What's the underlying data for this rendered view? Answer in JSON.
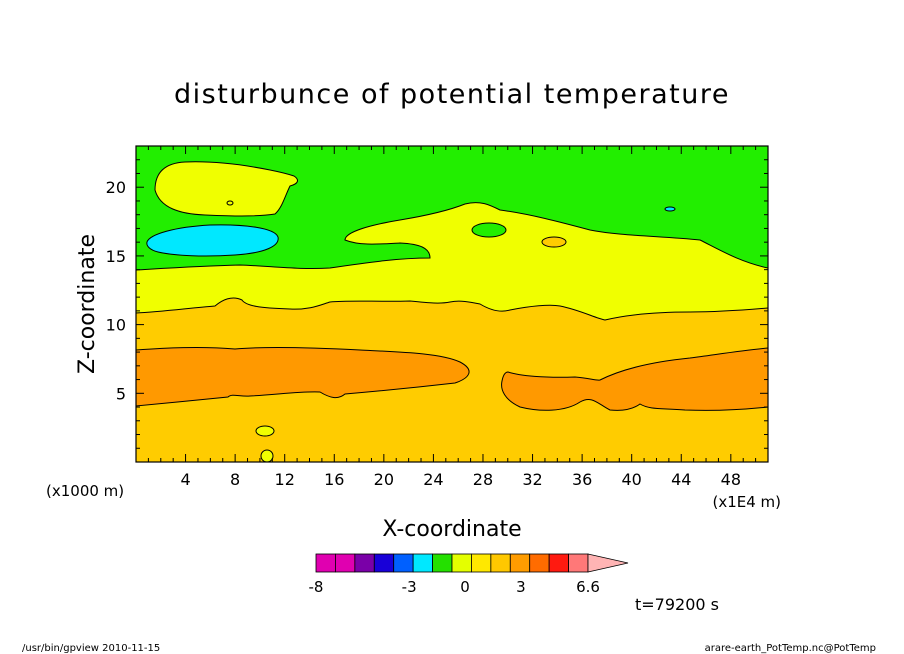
{
  "chart_data": {
    "type": "heatmap",
    "title": "disturbunce of potential temperature",
    "xlabel": "X-coordinate",
    "ylabel": "Z-coordinate",
    "x_unit": "(x1E4 m)",
    "y_unit": "(x1000 m)",
    "xlim": [
      0,
      51
    ],
    "ylim": [
      0,
      23
    ],
    "x_ticks": [
      "4",
      "8",
      "12",
      "16",
      "20",
      "24",
      "28",
      "32",
      "36",
      "40",
      "44",
      "48"
    ],
    "x_tick_values": [
      4,
      8,
      12,
      16,
      20,
      24,
      28,
      32,
      36,
      40,
      44,
      48
    ],
    "y_ticks": [
      "5",
      "10",
      "15",
      "20"
    ],
    "y_tick_values": [
      5,
      10,
      15,
      20
    ],
    "colorbar": {
      "tick_labels": [
        "-8",
        "-3",
        "0",
        "3",
        "6.6"
      ],
      "tick_values": [
        -8,
        -3,
        0,
        3,
        6.6
      ],
      "level_min": -8,
      "level_max": 6.6,
      "colors": [
        "#e000b0",
        "#e000b0",
        "#7a00a8",
        "#1800d8",
        "#0060ff",
        "#00e8ff",
        "#24e000",
        "#e4ff00",
        "#ffe800",
        "#ffc800",
        "#ff9c00",
        "#ff6c00",
        "#ff1a10",
        "#ff7878",
        "#ffb4b4"
      ]
    },
    "bands_by_height": [
      {
        "level": "orange-yellow",
        "z_range": [
          0,
          4.5
        ],
        "color": "#ffcc00"
      },
      {
        "level": "orange",
        "z_range": [
          4.5,
          8.2
        ],
        "color": "#ff9900"
      },
      {
        "level": "orange-yellow",
        "z_range": [
          8.2,
          11
        ],
        "color": "#ffcc00"
      },
      {
        "level": "yellow",
        "z_range": [
          11,
          14
        ],
        "color": "#f0ff00"
      },
      {
        "level": "green",
        "z_range": [
          14,
          23
        ],
        "color": "#22ee00"
      }
    ],
    "annotation": "t=79200 s"
  },
  "footer": {
    "left": "/usr/bin/gpview   2010-11-15",
    "right": "arare-earth_PotTemp.nc@PotTemp"
  }
}
